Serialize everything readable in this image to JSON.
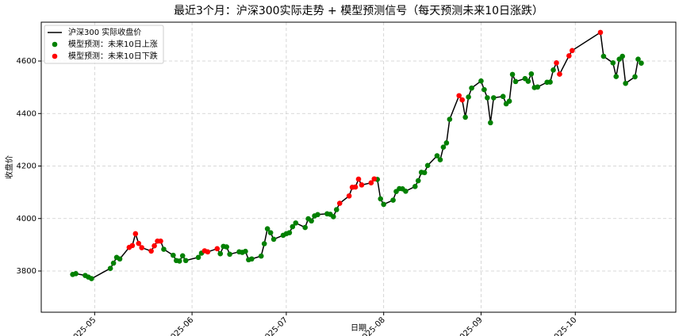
{
  "chart_data": {
    "type": "line",
    "title": "最近3个月：沪深300实际走势 + 模型预测信号（每天预测未来10日涨跌）",
    "x_label": "日期",
    "y_label": "收盘价",
    "xlim": [
      104,
      306
    ],
    "ylim": [
      3643,
      4748
    ],
    "xticks": [
      {
        "value": 121,
        "label": "2025-05"
      },
      {
        "value": 152,
        "label": "2025-06"
      },
      {
        "value": 182,
        "label": "2025-07"
      },
      {
        "value": 213,
        "label": "2025-08"
      },
      {
        "value": 244,
        "label": "2025-09"
      },
      {
        "value": 274,
        "label": "2025-10"
      }
    ],
    "yticks": [
      3800,
      4000,
      4200,
      4400,
      4600
    ],
    "grid": true,
    "legend": "upper left",
    "series": [
      {
        "name": "沪深300 实际收盘价",
        "color": "#000000",
        "marker": false,
        "x": [
          114,
          115,
          118,
          119,
          120,
          126,
          127,
          128,
          129,
          132,
          133,
          134,
          135,
          136,
          139,
          140,
          141,
          142,
          143,
          146,
          147,
          148,
          149,
          150,
          154,
          155,
          156,
          157,
          160,
          161,
          162,
          163,
          164,
          167,
          168,
          169,
          170,
          171,
          174,
          175,
          176,
          177,
          178,
          181,
          182,
          183,
          184,
          185,
          188,
          189,
          190,
          191,
          192,
          195,
          196,
          197,
          198,
          199,
          202,
          203,
          204,
          205,
          206,
          209,
          210,
          211,
          212,
          213,
          216,
          217,
          218,
          219,
          220,
          223,
          224,
          225,
          226,
          227,
          230,
          231,
          232,
          233,
          234,
          237,
          238,
          239,
          240,
          241,
          244,
          245,
          246,
          247,
          248,
          251,
          252,
          253,
          254,
          255,
          258,
          259,
          260,
          261,
          262,
          265,
          266,
          267,
          268,
          269,
          272,
          273,
          282,
          283,
          286,
          287,
          288,
          289,
          290,
          293,
          294,
          295
        ],
        "values": [
          3787,
          3790,
          3783,
          3777,
          3771,
          3810,
          3830,
          3852,
          3846,
          3890,
          3897,
          3942,
          3905,
          3889,
          3876,
          3896,
          3914,
          3914,
          3883,
          3860,
          3840,
          3838,
          3858,
          3840,
          3852,
          3868,
          3877,
          3873,
          3885,
          3866,
          3894,
          3892,
          3864,
          3873,
          3871,
          3875,
          3843,
          3846,
          3857,
          3904,
          3961,
          3946,
          3921,
          3936,
          3942,
          3946,
          3969,
          3983,
          3966,
          3999,
          3991,
          4010,
          4015,
          4018,
          4016,
          4007,
          4034,
          4058,
          4086,
          4119,
          4120,
          4150,
          4128,
          4136,
          4151,
          4149,
          4075,
          4054,
          4070,
          4103,
          4114,
          4113,
          4104,
          4122,
          4144,
          4176,
          4175,
          4202,
          4239,
          4224,
          4272,
          4288,
          4378,
          4468,
          4452,
          4386,
          4463,
          4497,
          4524,
          4491,
          4460,
          4365,
          4460,
          4465,
          4437,
          4447,
          4549,
          4522,
          4533,
          4523,
          4551,
          4499,
          4501,
          4519,
          4520,
          4566,
          4593,
          4550,
          4620,
          4640,
          4709,
          4618,
          4593,
          4541,
          4607,
          4618,
          4515,
          4540,
          4607,
          4592
        ]
      },
      {
        "name": "模型预测：未来10日上涨",
        "color": "#008000",
        "marker": true,
        "x": [
          114,
          115,
          118,
          119,
          120,
          126,
          127,
          128,
          129,
          143,
          146,
          147,
          148,
          149,
          150,
          154,
          155,
          161,
          162,
          163,
          164,
          167,
          168,
          169,
          170,
          171,
          174,
          175,
          176,
          177,
          178,
          181,
          182,
          183,
          184,
          185,
          188,
          189,
          190,
          191,
          192,
          195,
          196,
          197,
          198,
          211,
          212,
          213,
          216,
          217,
          218,
          219,
          220,
          223,
          224,
          225,
          226,
          227,
          230,
          231,
          232,
          233,
          234,
          239,
          240,
          241,
          244,
          245,
          246,
          247,
          248,
          251,
          252,
          253,
          254,
          255,
          258,
          259,
          260,
          261,
          262,
          265,
          266,
          267,
          283,
          286,
          287,
          288,
          289,
          290,
          293,
          294,
          295
        ],
        "values": [
          3787,
          3790,
          3783,
          3777,
          3771,
          3810,
          3830,
          3852,
          3846,
          3883,
          3860,
          3840,
          3838,
          3858,
          3840,
          3852,
          3868,
          3866,
          3894,
          3892,
          3864,
          3873,
          3871,
          3875,
          3843,
          3846,
          3857,
          3904,
          3961,
          3946,
          3921,
          3936,
          3942,
          3946,
          3969,
          3983,
          3966,
          3999,
          3991,
          4010,
          4015,
          4018,
          4016,
          4007,
          4034,
          4149,
          4075,
          4054,
          4070,
          4103,
          4114,
          4113,
          4104,
          4122,
          4144,
          4176,
          4175,
          4202,
          4239,
          4224,
          4272,
          4288,
          4378,
          4386,
          4463,
          4497,
          4524,
          4491,
          4460,
          4365,
          4460,
          4465,
          4437,
          4447,
          4549,
          4522,
          4533,
          4523,
          4551,
          4499,
          4501,
          4519,
          4520,
          4566,
          4618,
          4593,
          4541,
          4607,
          4618,
          4515,
          4540,
          4607,
          4592
        ]
      },
      {
        "name": "模型预测：未来10日下跌",
        "color": "#ff0000",
        "marker": true,
        "x": [
          132,
          133,
          134,
          135,
          136,
          139,
          140,
          141,
          142,
          156,
          157,
          160,
          199,
          202,
          203,
          204,
          205,
          206,
          209,
          210,
          237,
          238,
          268,
          269,
          272,
          273,
          282
        ],
        "values": [
          3890,
          3897,
          3942,
          3905,
          3889,
          3876,
          3896,
          3914,
          3914,
          3877,
          3873,
          3885,
          4058,
          4086,
          4119,
          4120,
          4150,
          4128,
          4136,
          4151,
          4468,
          4452,
          4593,
          4550,
          4620,
          4640,
          4709
        ]
      }
    ]
  }
}
